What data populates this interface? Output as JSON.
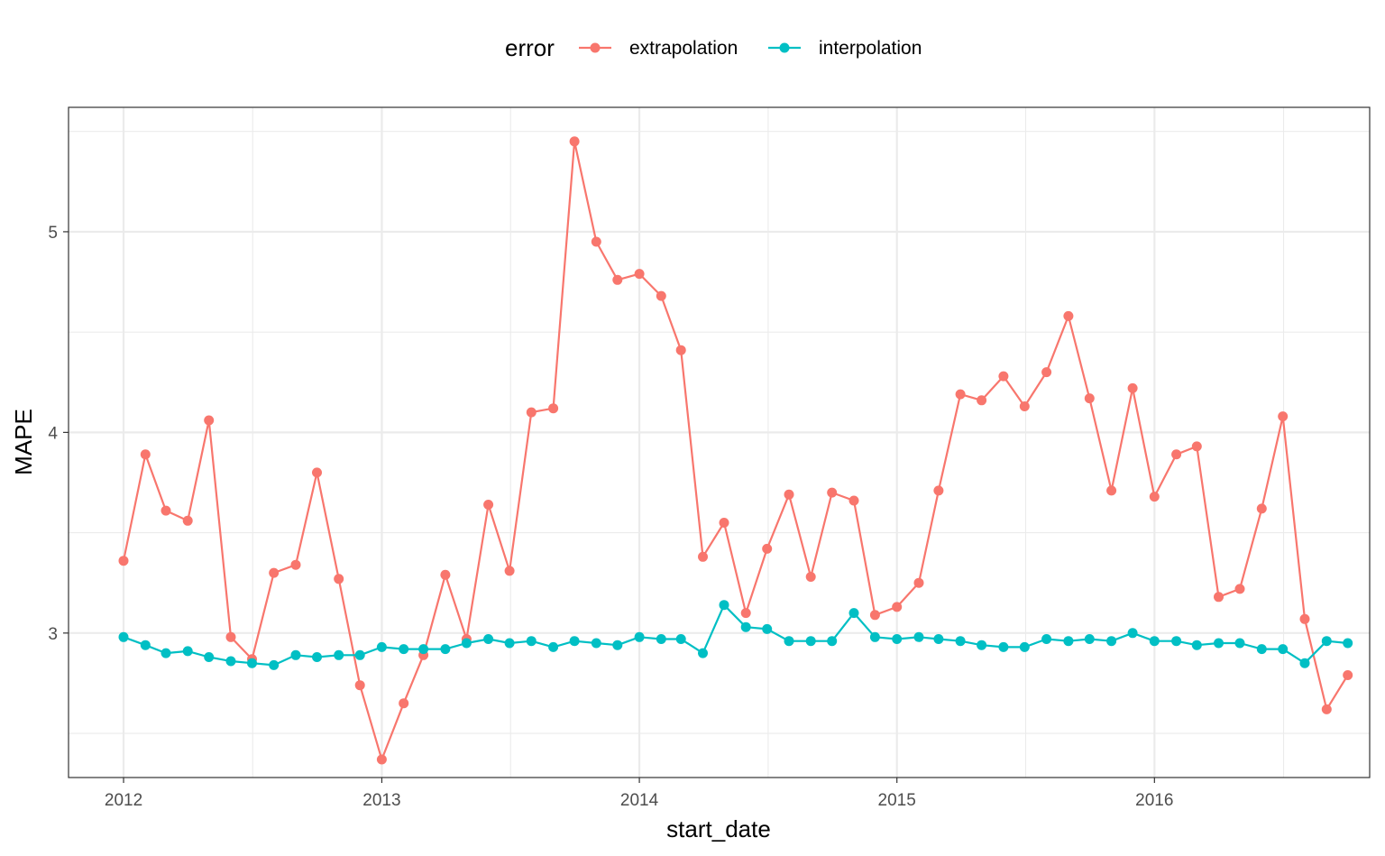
{
  "chart_data": {
    "type": "line",
    "xlabel": "start_date",
    "ylabel": "MAPE",
    "x_ticks": [
      "2012",
      "2013",
      "2014",
      "2015",
      "2016"
    ],
    "y_ticks": [
      "3",
      "4",
      "5"
    ],
    "xlim": [
      "2011-10-15",
      "2016-11-01"
    ],
    "ylim": [
      2.28,
      5.62
    ],
    "grid": true,
    "legend": {
      "title": "error",
      "position": "top"
    },
    "x": [
      "2012-01-01",
      "2012-02-01",
      "2012-03-01",
      "2012-04-01",
      "2012-05-01",
      "2012-06-01",
      "2012-07-01",
      "2012-08-01",
      "2012-09-01",
      "2012-10-01",
      "2012-11-01",
      "2012-12-01",
      "2013-01-01",
      "2013-02-01",
      "2013-03-01",
      "2013-04-01",
      "2013-05-01",
      "2013-06-01",
      "2013-07-01",
      "2013-08-01",
      "2013-09-01",
      "2013-10-01",
      "2013-11-01",
      "2013-12-01",
      "2014-01-01",
      "2014-02-01",
      "2014-03-01",
      "2014-04-01",
      "2014-05-01",
      "2014-06-01",
      "2014-07-01",
      "2014-08-01",
      "2014-09-01",
      "2014-10-01",
      "2014-11-01",
      "2014-12-01",
      "2015-01-01",
      "2015-02-01",
      "2015-03-01",
      "2015-04-01",
      "2015-05-01",
      "2015-06-01",
      "2015-07-01",
      "2015-08-01",
      "2015-09-01",
      "2015-10-01",
      "2015-11-01",
      "2015-12-01",
      "2016-01-01",
      "2016-02-01",
      "2016-03-01",
      "2016-04-01",
      "2016-05-01",
      "2016-06-01",
      "2016-07-01",
      "2016-08-01",
      "2016-09-01",
      "2016-10-01"
    ],
    "series": [
      {
        "name": "extrapolation",
        "color": "#F8766D",
        "values": [
          3.36,
          3.89,
          3.61,
          3.56,
          4.06,
          2.98,
          2.87,
          3.3,
          3.34,
          3.8,
          3.27,
          2.74,
          2.37,
          2.65,
          2.89,
          3.29,
          2.97,
          3.64,
          3.31,
          4.1,
          4.12,
          5.45,
          4.95,
          4.76,
          4.79,
          4.68,
          4.41,
          3.38,
          3.55,
          3.1,
          3.42,
          3.69,
          3.28,
          3.7,
          3.66,
          3.09,
          3.13,
          3.25,
          3.71,
          4.19,
          4.16,
          4.28,
          4.13,
          4.3,
          4.58,
          4.17,
          3.71,
          4.22,
          3.68,
          3.89,
          3.93,
          3.18,
          3.22,
          3.62,
          4.08,
          3.07,
          2.62,
          2.79
        ]
      },
      {
        "name": "interpolation",
        "color": "#00BFC4",
        "values": [
          2.98,
          2.94,
          2.9,
          2.91,
          2.88,
          2.86,
          2.85,
          2.84,
          2.89,
          2.88,
          2.89,
          2.89,
          2.93,
          2.92,
          2.92,
          2.92,
          2.95,
          2.97,
          2.95,
          2.96,
          2.93,
          2.96,
          2.95,
          2.94,
          2.98,
          2.97,
          2.97,
          2.9,
          3.14,
          3.03,
          3.02,
          2.96,
          2.96,
          2.96,
          3.1,
          2.98,
          2.97,
          2.98,
          2.97,
          2.96,
          2.94,
          2.93,
          2.93,
          2.97,
          2.96,
          2.97,
          2.96,
          3.0,
          2.96,
          2.96,
          2.94,
          2.95,
          2.95,
          2.92,
          2.92,
          2.85,
          2.96,
          2.95
        ]
      }
    ]
  }
}
